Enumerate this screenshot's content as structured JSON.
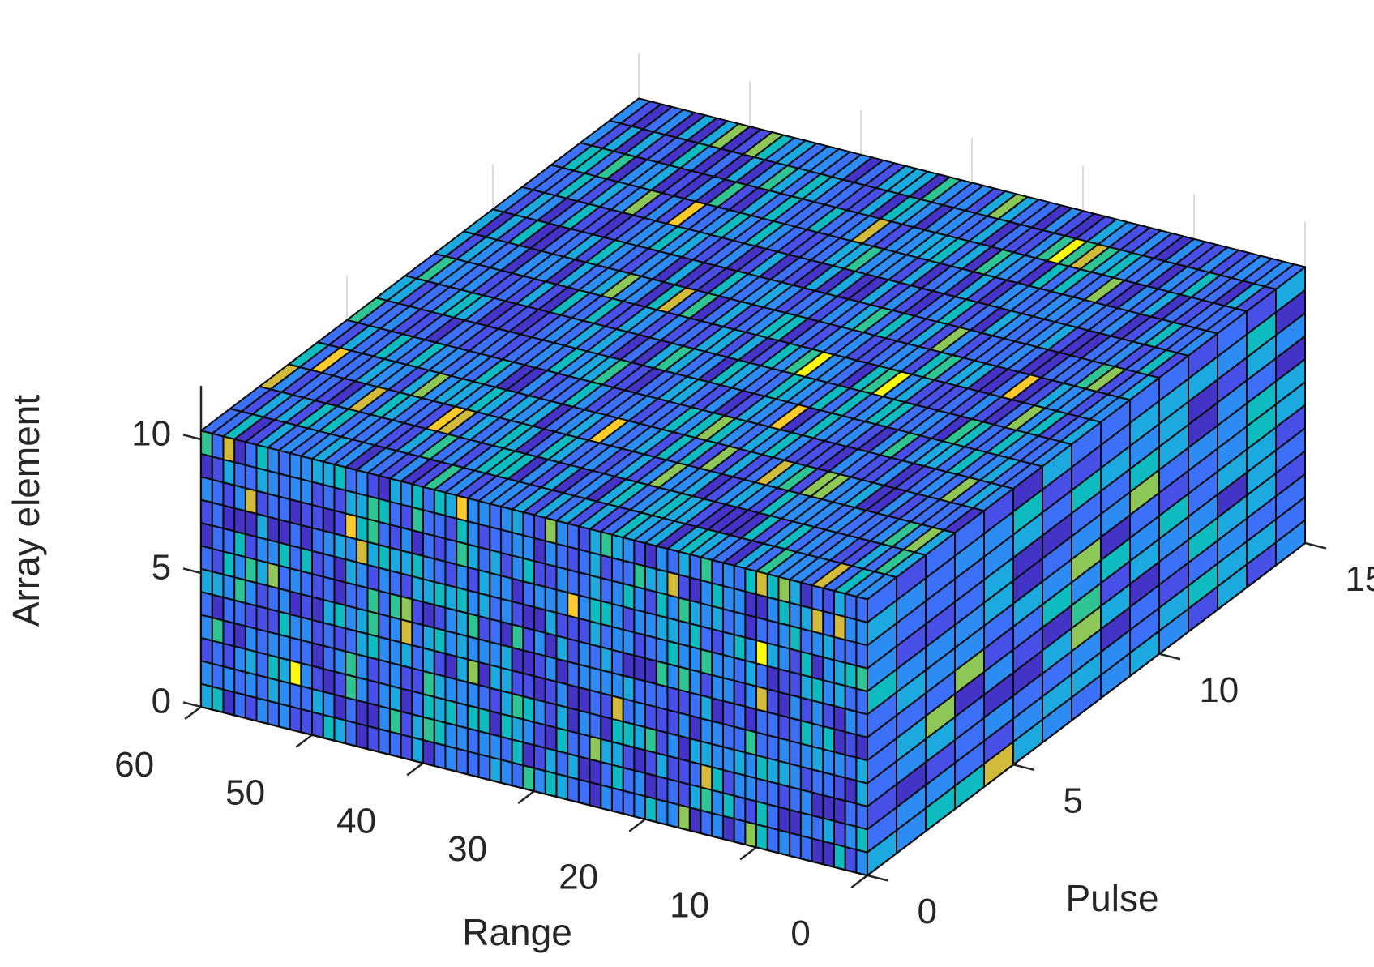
{
  "chart_data": {
    "type": "heatmap",
    "variant": "3d-voxel-cube",
    "dimensions": {
      "range": 60,
      "pulse": 15,
      "array_element": 12
    },
    "xlabel": "Range",
    "ylabel": "Pulse",
    "zlabel": "Array element",
    "xlim": [
      0,
      60
    ],
    "ylim": [
      0,
      15
    ],
    "zlim": [
      0,
      12
    ],
    "xticks": [
      0,
      10,
      20,
      30,
      40,
      50,
      60
    ],
    "yticks": [
      0,
      5,
      10,
      15
    ],
    "zticks": [
      0,
      5,
      10
    ],
    "grid": true,
    "colormap": "parula",
    "colors": [
      "#3e26a8",
      "#4433c7",
      "#484fe6",
      "#3d70f8",
      "#2d8cf3",
      "#1ca9df",
      "#0dbbc1",
      "#2ec493",
      "#8cc758",
      "#d2bb3a",
      "#fdca2b",
      "#f9fb0e"
    ],
    "seed": 20240607
  }
}
